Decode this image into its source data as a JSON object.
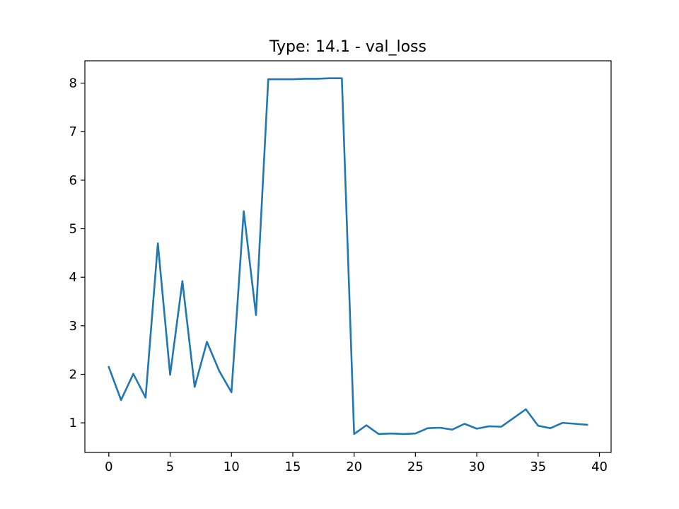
{
  "chart_data": {
    "type": "line",
    "title": "Type: 14.1 - val_loss",
    "xlabel": "",
    "ylabel": "",
    "xlim": [
      -1.95,
      40.95
    ],
    "ylim": [
      0.39,
      8.46
    ],
    "xticks": [
      0,
      5,
      10,
      15,
      20,
      25,
      30,
      35,
      40
    ],
    "yticks": [
      1,
      2,
      3,
      4,
      5,
      6,
      7,
      8
    ],
    "grid": false,
    "series": [
      {
        "color": "#1f77b4",
        "x": [
          0,
          1,
          2,
          3,
          4,
          5,
          6,
          7,
          8,
          9,
          10,
          11,
          12,
          13,
          14,
          15,
          16,
          17,
          18,
          19,
          20,
          21,
          22,
          23,
          24,
          25,
          26,
          27,
          28,
          29,
          30,
          31,
          32,
          33,
          34,
          35,
          36,
          37,
          38,
          39
        ],
        "values": [
          2.15,
          1.47,
          2.01,
          1.52,
          4.7,
          1.99,
          3.92,
          1.74,
          2.67,
          2.07,
          1.63,
          5.36,
          3.22,
          8.08,
          8.08,
          8.08,
          8.09,
          8.09,
          8.1,
          8.1,
          0.77,
          0.95,
          0.77,
          0.78,
          0.77,
          0.78,
          0.89,
          0.9,
          0.86,
          0.98,
          0.88,
          0.93,
          0.92,
          1.1,
          1.28,
          0.94,
          0.89,
          1.0,
          0.98,
          0.96
        ]
      }
    ]
  }
}
